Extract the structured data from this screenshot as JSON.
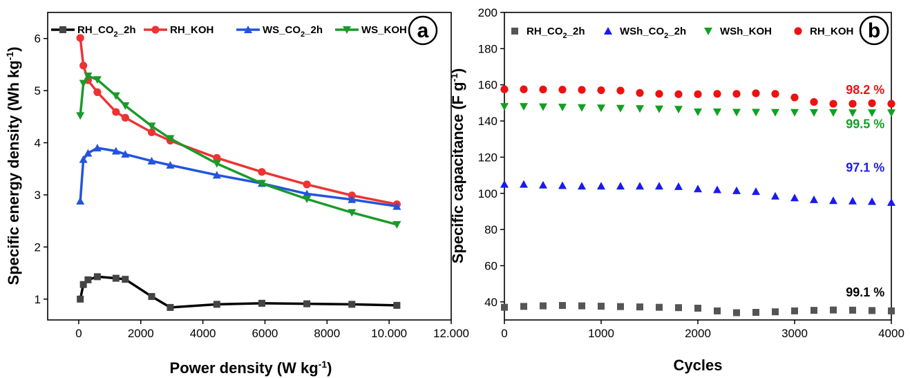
{
  "chart_data": [
    {
      "panel": "a",
      "type": "line",
      "xlabel": "Power density (W kg",
      "xlabel_sup": "-1",
      "xlabel_close": ")",
      "ylabel": "Specific energy density (Wh kg",
      "ylabel_sup": "-1",
      "ylabel_close": ")",
      "xlim": [
        -1000,
        12000
      ],
      "ylim": [
        0.6,
        6.5
      ],
      "xticks": [
        0,
        2000,
        4000,
        6000,
        8000,
        10000,
        12000
      ],
      "xtick_labels": [
        "0",
        "2000",
        "4000",
        "6000",
        "8000",
        "10.000",
        "12.000"
      ],
      "yticks": [
        1,
        2,
        3,
        4,
        5,
        6
      ],
      "legend_position": "top",
      "series": [
        {
          "name": "RH_CO",
          "name_sub": "2",
          "name_rest": "_2h",
          "color": "#444444",
          "marker": "square",
          "x": [
            50,
            150,
            300,
            600,
            1200,
            1500,
            2350,
            2950,
            4450,
            5900,
            7350,
            8800,
            10250
          ],
          "y": [
            1.0,
            1.28,
            1.37,
            1.43,
            1.4,
            1.38,
            1.05,
            0.84,
            0.9,
            0.92,
            0.91,
            0.9,
            0.88
          ]
        },
        {
          "name": "RH_KOH",
          "name_sub": "",
          "name_rest": "",
          "color": "#ee3333",
          "marker": "circle",
          "x": [
            50,
            150,
            300,
            600,
            1200,
            1500,
            2350,
            2950,
            4450,
            5900,
            7350,
            8800,
            10250
          ],
          "y": [
            6.01,
            5.48,
            5.2,
            4.97,
            4.59,
            4.48,
            4.2,
            4.04,
            3.71,
            3.44,
            3.2,
            2.99,
            2.82
          ]
        },
        {
          "name": "WS_CO",
          "name_sub": "2",
          "name_rest": "_2h",
          "color": "#2255dd",
          "marker": "triangle-up",
          "x": [
            50,
            150,
            300,
            600,
            1200,
            1500,
            2350,
            2950,
            4450,
            5900,
            7350,
            8800,
            10250
          ],
          "y": [
            2.88,
            3.68,
            3.8,
            3.9,
            3.84,
            3.78,
            3.65,
            3.57,
            3.38,
            3.22,
            3.02,
            2.91,
            2.78
          ]
        },
        {
          "name": "WS_KOH",
          "name_sub": "",
          "name_rest": "",
          "color": "#1a9a2a",
          "marker": "triangle-down",
          "x": [
            50,
            150,
            300,
            600,
            1200,
            1500,
            2350,
            2950,
            4450,
            5900,
            7350,
            8800,
            10250
          ],
          "y": [
            4.52,
            5.14,
            5.28,
            5.21,
            4.9,
            4.71,
            4.32,
            4.08,
            3.6,
            3.22,
            2.92,
            2.66,
            2.43
          ]
        }
      ]
    },
    {
      "panel": "b",
      "type": "scatter",
      "xlabel": "Cycles",
      "ylabel": "Specific capacitance (F g",
      "ylabel_sup": "-1",
      "ylabel_close": ")",
      "xlim": [
        0,
        4000
      ],
      "ylim": [
        30,
        200
      ],
      "xticks": [
        0,
        1000,
        2000,
        3000,
        4000
      ],
      "yticks": [
        40,
        60,
        80,
        100,
        120,
        140,
        160,
        180,
        200
      ],
      "legend_position": "top",
      "series": [
        {
          "name": "RH_CO",
          "name_sub": "2",
          "name_rest": "_2h",
          "color": "#555555",
          "marker": "square",
          "x": [
            0,
            200,
            400,
            600,
            800,
            1000,
            1200,
            1400,
            1600,
            1800,
            2000,
            2200,
            2400,
            2600,
            2800,
            3000,
            3200,
            3400,
            3600,
            3800,
            4000
          ],
          "y": [
            37,
            37.5,
            37.8,
            38,
            37.8,
            37.6,
            37.4,
            37.2,
            37,
            36.8,
            36.5,
            35,
            34,
            34.2,
            34.5,
            35,
            35.3,
            35.5,
            35.4,
            35.2,
            35
          ]
        },
        {
          "name": "WSh_CO",
          "name_sub": "2",
          "name_rest": "_2h",
          "color": "#1a1aee",
          "marker": "triangle-up",
          "x": [
            0,
            200,
            400,
            600,
            800,
            1000,
            1200,
            1400,
            1600,
            1800,
            2000,
            2200,
            2400,
            2600,
            2800,
            3000,
            3200,
            3400,
            3600,
            3800,
            4000
          ],
          "y": [
            105,
            105,
            104.6,
            104.3,
            104,
            104,
            104,
            104,
            104,
            103.8,
            102.5,
            102,
            101.5,
            101,
            98.5,
            97.5,
            96.5,
            96,
            95.8,
            95.5,
            95
          ]
        },
        {
          "name": "WSh_KOH",
          "name_sub": "",
          "name_rest": "",
          "color": "#11a022",
          "marker": "triangle-down",
          "x": [
            0,
            200,
            400,
            600,
            800,
            1000,
            1200,
            1400,
            1600,
            1800,
            2000,
            2200,
            2400,
            2600,
            2800,
            3000,
            3200,
            3400,
            3600,
            3800,
            4000
          ],
          "y": [
            148,
            148,
            147.8,
            147.6,
            147.4,
            147.2,
            147,
            146.8,
            146.6,
            146.4,
            145,
            145,
            144.8,
            144.8,
            144.7,
            144.7,
            144.6,
            144.6,
            144.5,
            144.5,
            144.5
          ]
        },
        {
          "name": "RH_KOH",
          "name_sub": "",
          "name_rest": "",
          "color": "#ee1111",
          "marker": "circle",
          "x": [
            0,
            200,
            400,
            600,
            800,
            1000,
            1200,
            1400,
            1600,
            1800,
            2000,
            2200,
            2400,
            2600,
            2800,
            3000,
            3200,
            3400,
            3600,
            3800,
            4000
          ],
          "y": [
            157.5,
            157.5,
            157.4,
            157.3,
            157.2,
            157,
            156.8,
            155.5,
            155,
            154.8,
            154.8,
            155,
            155,
            155.3,
            155,
            153,
            150.5,
            149.5,
            149.5,
            149.8,
            149.5
          ]
        }
      ],
      "annotations": [
        {
          "text": "98.2 %",
          "color": "#ee1111",
          "x": 3530,
          "y": 155
        },
        {
          "text": "99.5 %",
          "color": "#11a022",
          "x": 3530,
          "y": 136
        },
        {
          "text": "97.1 %",
          "color": "#1a1aee",
          "x": 3530,
          "y": 112
        },
        {
          "text": "99.1 %",
          "color": "#000000",
          "x": 3530,
          "y": 43
        }
      ]
    }
  ]
}
